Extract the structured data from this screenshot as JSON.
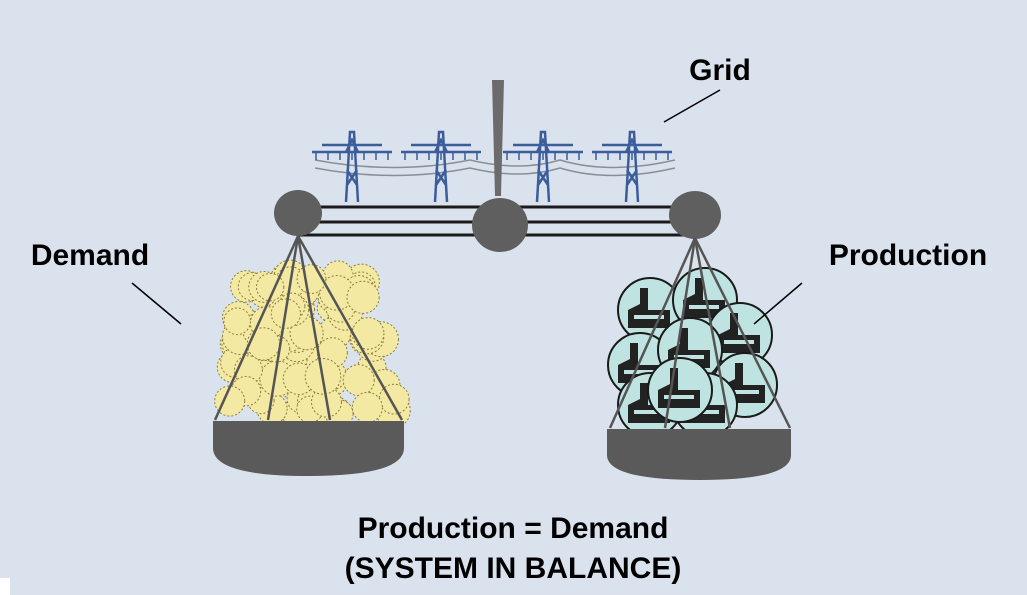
{
  "labels": {
    "grid": "Grid",
    "demand": "Demand",
    "production": "Production"
  },
  "caption": {
    "line1": "Production = Demand",
    "line2": "(SYSTEM IN BALANCE)"
  }
}
